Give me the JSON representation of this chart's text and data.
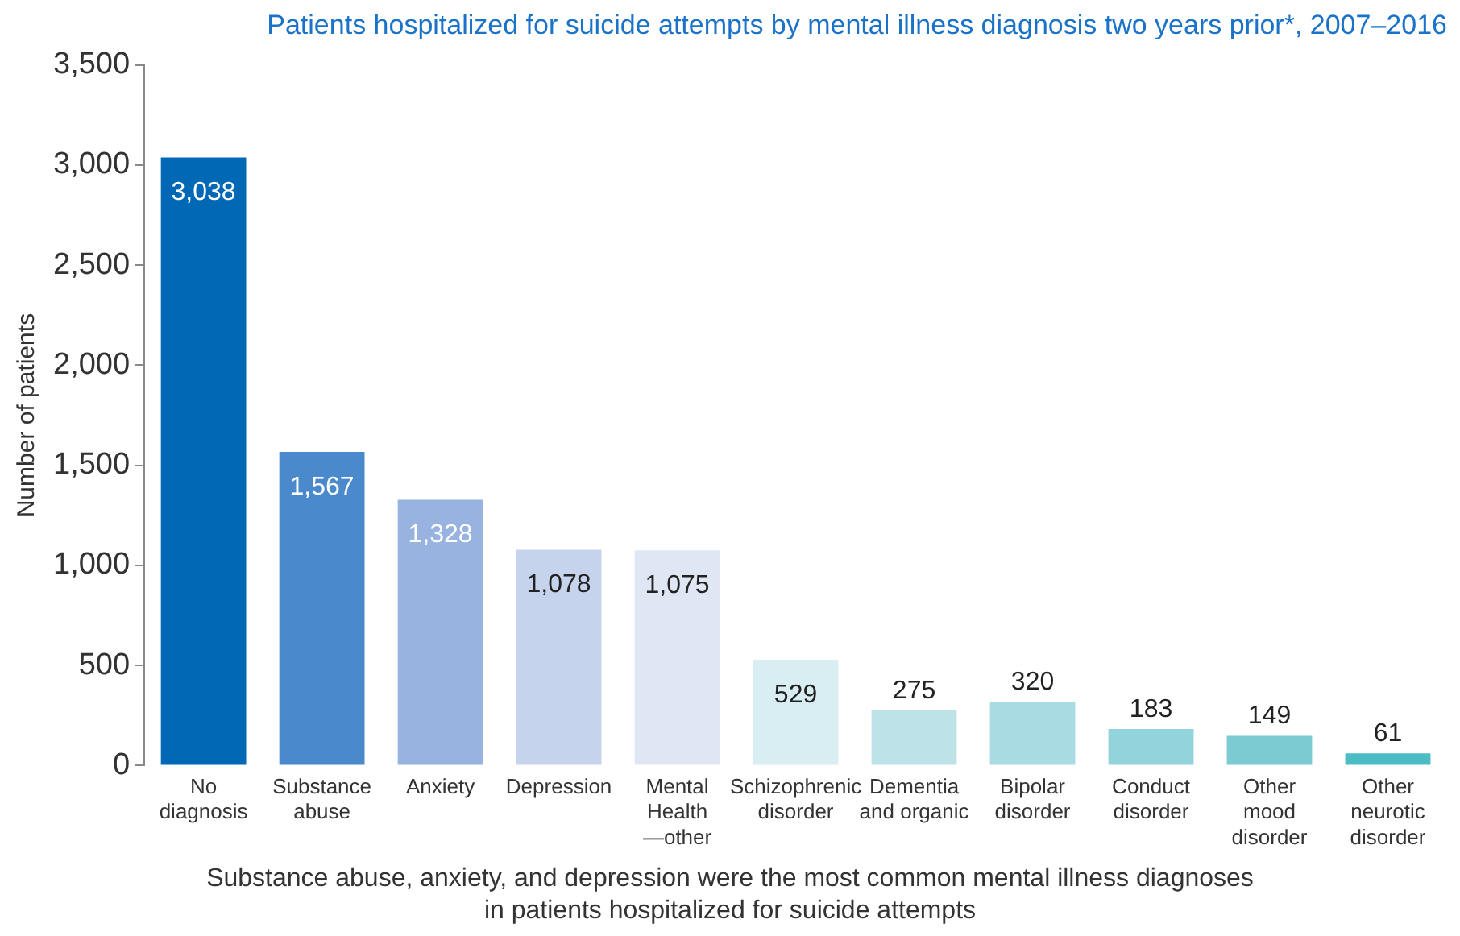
{
  "chart_data": {
    "type": "bar",
    "title": "Patients hospitalized for suicide attempts by mental illness diagnosis two years prior*, 2007–2016",
    "categories": [
      "No\ndiagnosis",
      "Substance\nabuse",
      "Anxiety",
      "Depression",
      "Mental\nHealth\n—other",
      "Schizophrenic\ndisorder",
      "Dementia\nand organic",
      "Bipolar\ndisorder",
      "Conduct\ndisorder",
      "Other\nmood\ndisorder",
      "Other\nneurotic\ndisorder"
    ],
    "values": [
      3038,
      1567,
      1328,
      1078,
      1075,
      529,
      275,
      320,
      183,
      149,
      61
    ],
    "colors": [
      "#0068b5",
      "#4a8acc",
      "#98b3e0",
      "#c6d3ec",
      "#dfe6f4",
      "#d9eef3",
      "#bde3e9",
      "#a8dbe2",
      "#93d3db",
      "#7ccbd3",
      "#4bbcc4"
    ],
    "ylabel": "Number of patients",
    "ylim": [
      0,
      3500
    ],
    "yticks": [
      0,
      500,
      {
        "value": 1000,
        "label": "1,000"
      },
      {
        "value": 1500,
        "label": "1,500"
      },
      {
        "value": 2000,
        "label": "2,000"
      },
      {
        "value": 2500,
        "label": "2,500"
      },
      {
        "value": 3000,
        "label": "3,000"
      },
      {
        "value": 3500,
        "label": "3,500"
      }
    ],
    "value_labels": [
      "3,038",
      "1,567",
      "1,328",
      "1,078",
      "1,075",
      "529",
      "275",
      "320",
      "183",
      "149",
      "61"
    ],
    "grid": false,
    "legend": false,
    "annotations": [
      "Substance abuse, anxiety, and depression were the most common mental illness diagnoses\nin patients hospitalized for suicide attempts"
    ]
  }
}
